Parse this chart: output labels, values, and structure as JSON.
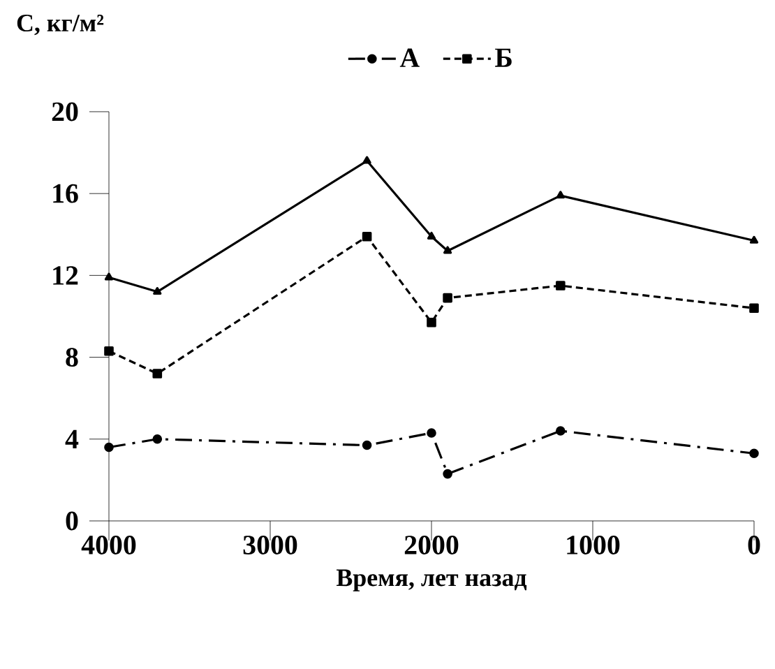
{
  "chart_data": {
    "type": "line",
    "xlabel": "Время, лет назад",
    "ylabel": "С, кг/м²",
    "x": [
      4000,
      3700,
      2400,
      2000,
      1900,
      1200,
      0
    ],
    "series": [
      {
        "name": "А",
        "color": "#000000",
        "marker": "circle",
        "line_style": "dashdot",
        "values": [
          3.6,
          4.0,
          3.7,
          4.3,
          2.3,
          4.4,
          3.3
        ]
      },
      {
        "name": "Б",
        "color": "#000000",
        "marker": "square",
        "line_style": "dashed",
        "values": [
          8.3,
          7.2,
          13.9,
          9.7,
          10.9,
          11.5,
          10.4
        ]
      },
      {
        "color": "#000000",
        "marker": "triangle",
        "line_style": "solid",
        "values": [
          11.9,
          11.2,
          17.6,
          13.9,
          13.2,
          15.9,
          13.7
        ]
      }
    ],
    "xlim": [
      4000,
      0
    ],
    "ylim": [
      0,
      20
    ],
    "xticks": [
      4000,
      3000,
      2000,
      1000,
      0
    ],
    "yticks": [
      0,
      4,
      8,
      12,
      16,
      20
    ],
    "grid": false,
    "legend": "top"
  }
}
